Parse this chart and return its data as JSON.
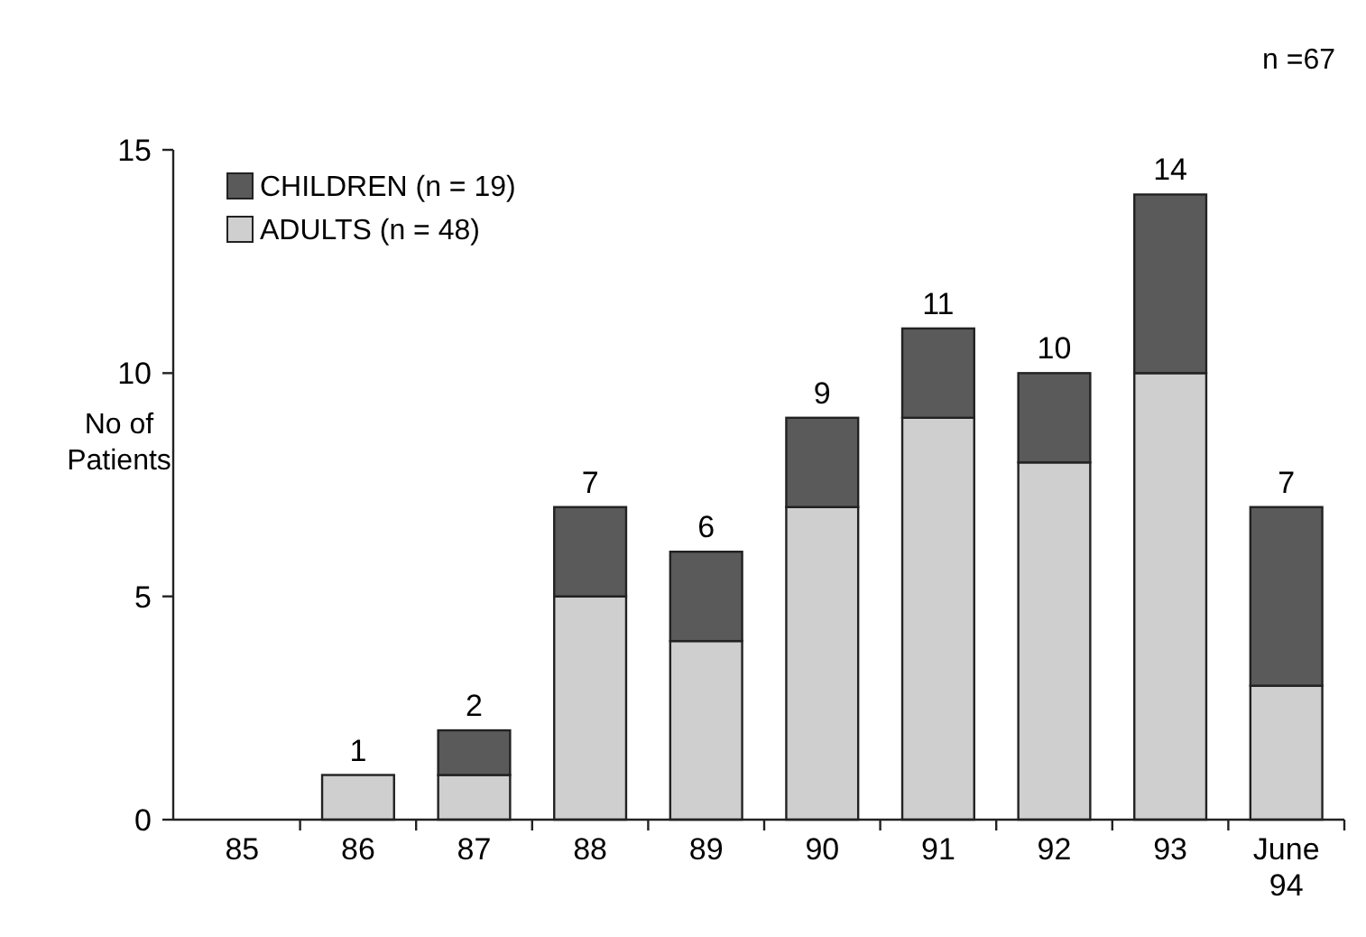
{
  "chart_data": {
    "type": "bar",
    "stacked": true,
    "ylabel": "No of Patients",
    "categories": [
      "85",
      "86",
      "87",
      "88",
      "89",
      "90",
      "91",
      "92",
      "93",
      "June 94"
    ],
    "series": [
      {
        "name": "ADULTS (n = 48)",
        "color": "#cfcfcf",
        "values": [
          0,
          1,
          1,
          5,
          4,
          7,
          9,
          8,
          10,
          3
        ]
      },
      {
        "name": "CHILDREN (n = 19)",
        "color": "#5a5a5a",
        "values": [
          0,
          0,
          1,
          2,
          2,
          2,
          2,
          2,
          4,
          4
        ]
      }
    ],
    "totals": [
      null,
      "1",
      "2",
      "7",
      "6",
      "9",
      "11",
      "10",
      "14",
      "7"
    ],
    "ylim": [
      0,
      15
    ],
    "yticks": [
      0,
      5,
      10,
      15
    ],
    "grid": false,
    "legend": "top left",
    "annotations": [
      "n =67"
    ]
  }
}
